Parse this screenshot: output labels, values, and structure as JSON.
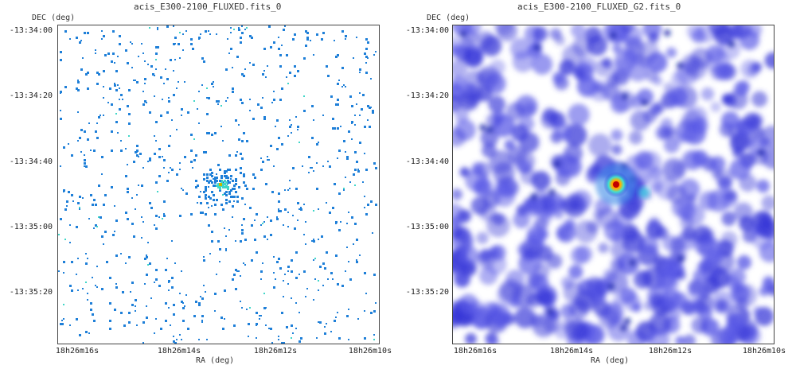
{
  "panels": [
    {
      "title": "acis_E300-2100_FLUXED.fits_0",
      "ylabel": "DEC (deg)",
      "xlabel": "RA (deg)",
      "yticks": [
        "-13:34:00",
        "-13:34:20",
        "-13:34:40",
        "-13:35:00",
        "-13:35:20"
      ],
      "xticks": [
        "18h26m16s",
        "18h26m14s",
        "18h26m12s",
        "18h26m10s"
      ],
      "style": "pixel"
    },
    {
      "title": "acis_E300-2100_FLUXED_G2.fits_0",
      "ylabel": "DEC (deg)",
      "xlabel": "RA (deg)",
      "yticks": [
        "-13:34:00",
        "-13:34:20",
        "-13:34:40",
        "-13:35:00",
        "-13:35:20"
      ],
      "xticks": [
        "18h26m16s",
        "18h26m14s",
        "18h26m12s",
        "18h26m10s"
      ],
      "style": "smoothed"
    }
  ],
  "colors": {
    "low": "#2b2bd6",
    "mid": "#1e7fd8",
    "cyan": "#3fd6c8",
    "hot": "#e02020",
    "core": "#ffd800"
  }
}
